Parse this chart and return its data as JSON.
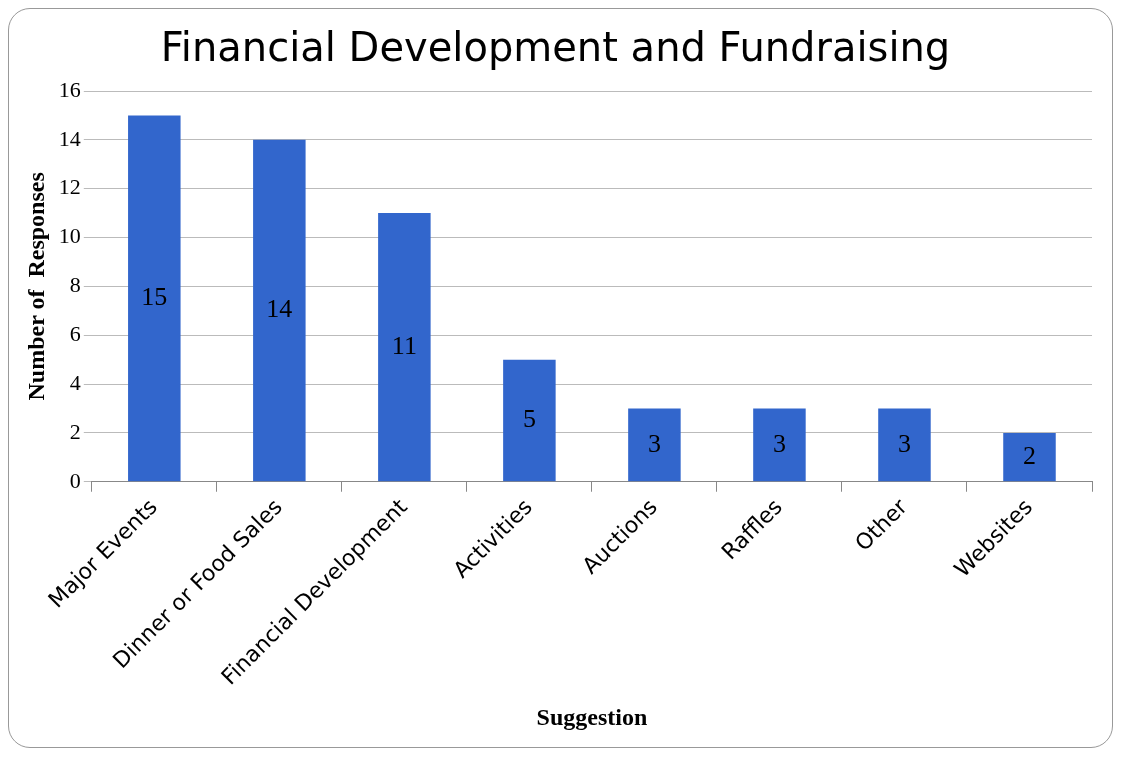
{
  "chart_data": {
    "type": "bar",
    "title": "Financial Development and Fundraising",
    "xlabel": "Suggestion",
    "ylabel": "Number of  Responses",
    "categories": [
      "Major Events",
      "Dinner or Food Sales",
      "Financial Development",
      "Activities",
      "Auctions",
      "Raffles",
      "Other",
      "Websites"
    ],
    "values": [
      15,
      14,
      11,
      5,
      3,
      3,
      3,
      2
    ],
    "color": "#3266cc",
    "ylim": [
      0,
      16
    ],
    "yticks": [
      0,
      2,
      4,
      6,
      8,
      10,
      12,
      14,
      16
    ],
    "grid": "y",
    "data_labels": true,
    "legend": false
  }
}
